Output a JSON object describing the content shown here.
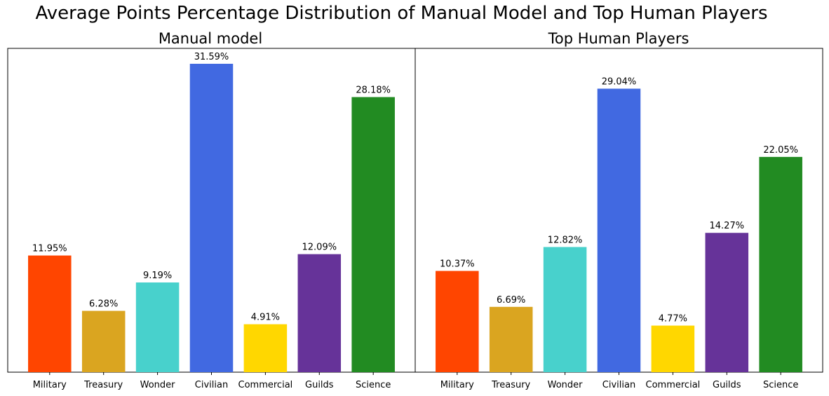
{
  "figure": {
    "suptitle": "Average Points Percentage Distribution of Manual Model and Top Human Players"
  },
  "chart_data": [
    {
      "type": "bar",
      "title": "Manual model",
      "xlabel": "",
      "ylabel": "",
      "categories": [
        "Military",
        "Treasury",
        "Wonder",
        "Civilian",
        "Commercial",
        "Guilds",
        "Science"
      ],
      "values": [
        11.95,
        6.28,
        9.19,
        31.59,
        4.91,
        12.09,
        28.18
      ],
      "data_labels": [
        "11.95%",
        "6.28%",
        "9.19%",
        "31.59%",
        "4.91%",
        "12.09%",
        "28.18%"
      ],
      "colors": [
        "#ff4500",
        "#daa520",
        "#48d1cc",
        "#4169e1",
        "#ffd700",
        "#663399",
        "#228b22"
      ],
      "ylim": [
        0,
        33.17
      ],
      "y_ticks_visible": false,
      "grid": false,
      "legend": "none"
    },
    {
      "type": "bar",
      "title": "Top Human Players",
      "xlabel": "",
      "ylabel": "",
      "categories": [
        "Military",
        "Treasury",
        "Wonder",
        "Civilian",
        "Commercial",
        "Guilds",
        "Science"
      ],
      "values": [
        10.37,
        6.69,
        12.82,
        29.04,
        4.77,
        14.27,
        22.05
      ],
      "data_labels": [
        "10.37%",
        "6.69%",
        "12.82%",
        "29.04%",
        "4.77%",
        "14.27%",
        "22.05%"
      ],
      "colors": [
        "#ff4500",
        "#daa520",
        "#48d1cc",
        "#4169e1",
        "#ffd700",
        "#663399",
        "#228b22"
      ],
      "ylim": [
        0,
        33.17
      ],
      "y_ticks_visible": false,
      "grid": false,
      "legend": "none"
    }
  ]
}
